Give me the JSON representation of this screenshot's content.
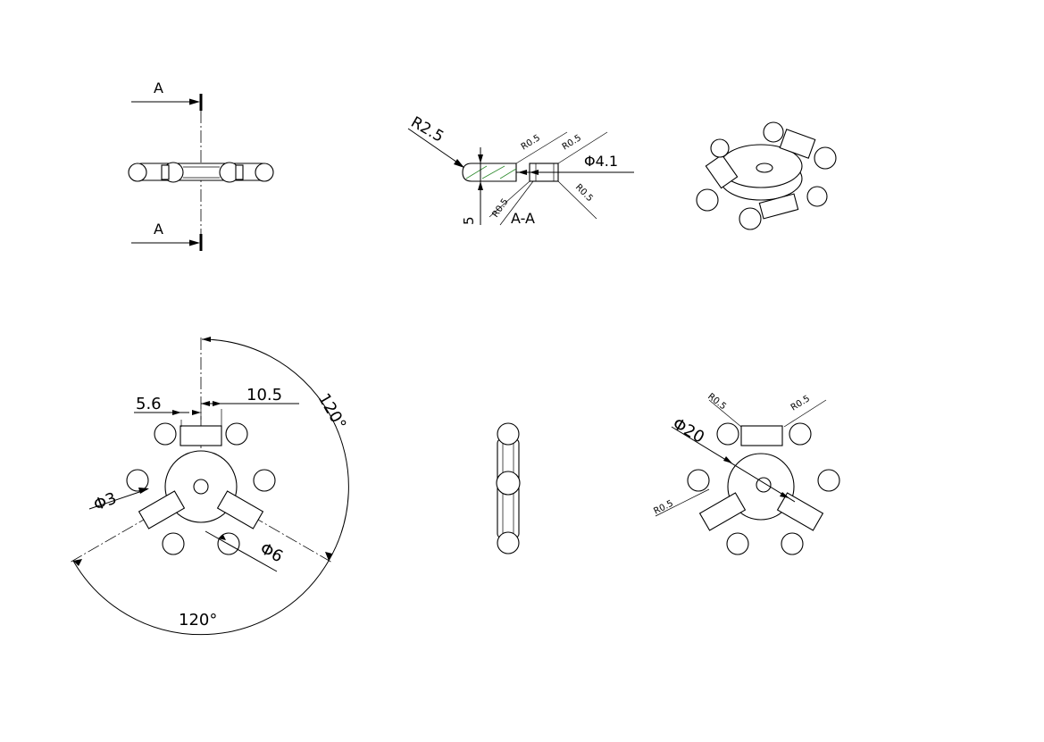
{
  "section": {
    "label_top": "A",
    "label_bottom": "A",
    "title": "A-A"
  },
  "dims": {
    "r25": "R2.5",
    "r05_a": "R0.5",
    "r05_b": "R0.5",
    "r05_c": "R0.5",
    "r05_d": "R0.5",
    "phi41": "Φ4.1",
    "five": "5",
    "d56": "5.6",
    "d105": "10.5",
    "ang120_right": "120°",
    "ang120_bottom": "120°",
    "phi3": "Φ3",
    "phi6": "Φ6",
    "phi20": "Φ20",
    "r05_e": "R0.5",
    "r05_f": "R0.5",
    "r05_g": "R0.5"
  }
}
